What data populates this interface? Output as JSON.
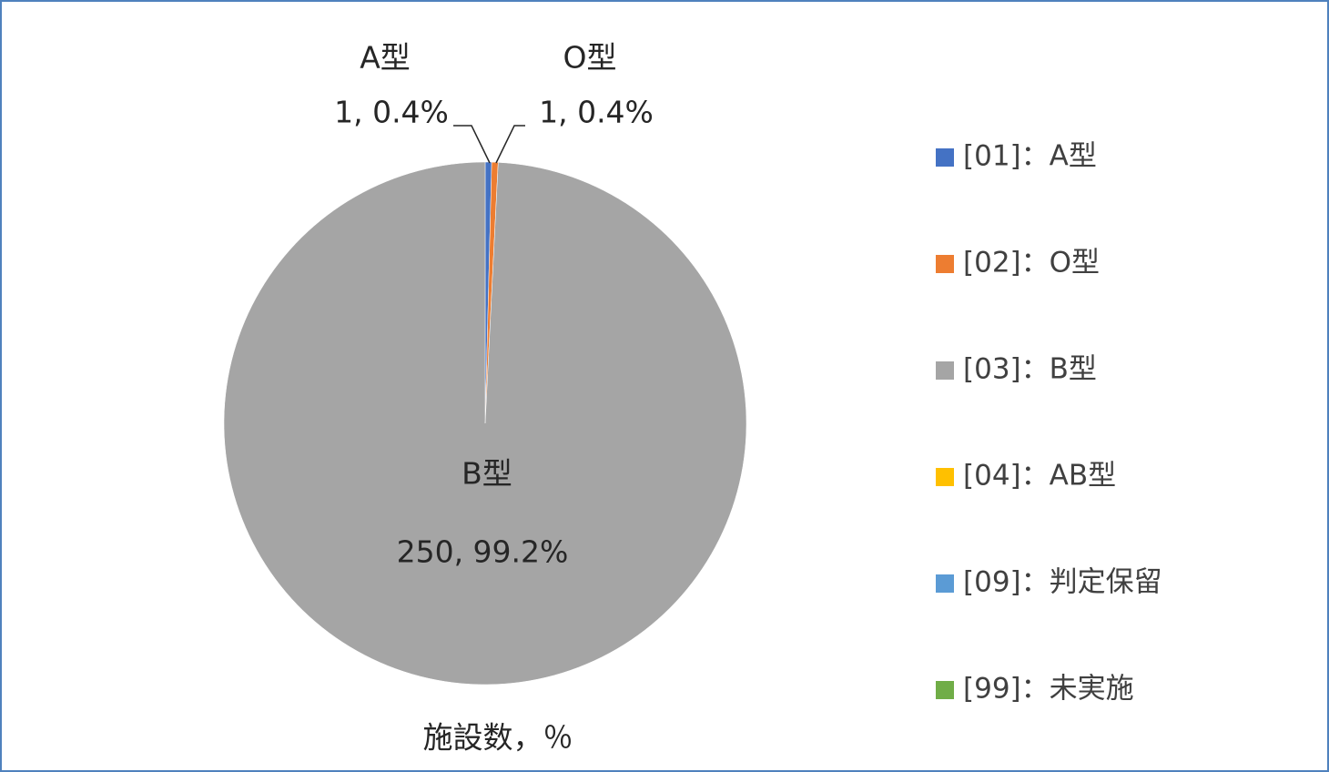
{
  "chart_data": {
    "type": "pie",
    "caption": "施設数，％",
    "categories": [
      "[01]：A型",
      "[02]：O型",
      "[03]：B型",
      "[04]：AB型",
      "[09]：判定保留",
      "[99]：未実施"
    ],
    "values": [
      1,
      1,
      250,
      0,
      0,
      0
    ],
    "label_names": [
      "A型",
      "O型",
      "B型",
      null,
      null,
      null
    ],
    "value_labels": [
      "1, 0.4%",
      "1, 0.4%",
      "250, 99.2%",
      null,
      null,
      null
    ],
    "colors": [
      "#4472c4",
      "#ed7d31",
      "#a5a5a5",
      "#ffc000",
      "#5b9bd5",
      "#70ad47"
    ],
    "start_angle": 0,
    "direction": "clockwise",
    "legend": "right"
  }
}
